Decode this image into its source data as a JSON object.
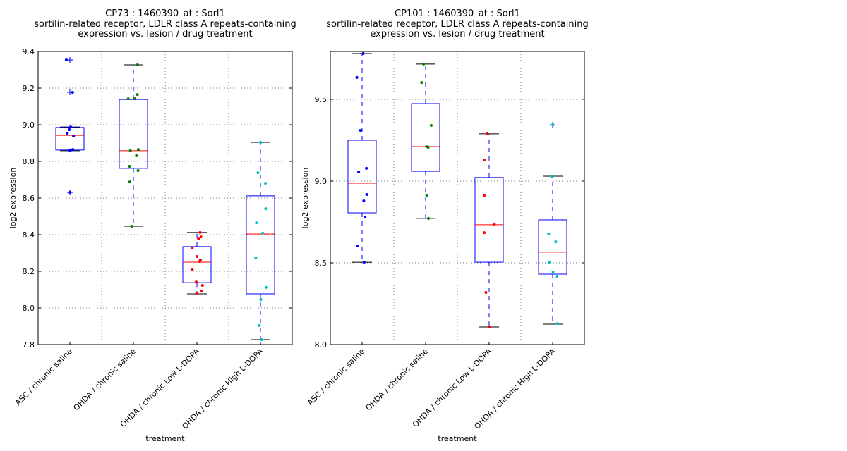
{
  "chart_data": [
    {
      "type": "box",
      "title_lines": [
        "CP73 : 1460390_at : Sorl1",
        "sortilin-related receptor, LDLR class A repeats-containing",
        "expression vs. lesion / drug treatment"
      ],
      "xlabel": "treatment",
      "ylabel": "log2 expression",
      "ylim": [
        7.8,
        9.4
      ],
      "yticks": [
        7.8,
        8.0,
        8.2,
        8.4,
        8.6,
        8.8,
        9.0,
        9.2,
        9.4
      ],
      "ytick_labels": [
        "7.8",
        "8.0",
        "8.2",
        "8.4",
        "8.6",
        "8.8",
        "9.0",
        "9.2",
        "9.4"
      ],
      "grid": true,
      "categories": [
        "ASC / chronic saline",
        "OHDA / chronic saline",
        "OHDA / chronic Low L-DOPA",
        "OHDA / chronic High L-DOPA"
      ],
      "groups": [
        {
          "name": "ASC / chronic saline",
          "color": "#0000ff",
          "box": {
            "q1": 8.862,
            "median": 8.942,
            "q3": 8.985,
            "whisker_low": 8.858,
            "whisker_high": 8.988
          },
          "outliers": [
            9.354,
            9.177,
            8.631
          ],
          "points": [
            9.354,
            9.177,
            8.988,
            8.973,
            8.954,
            8.938,
            8.865,
            8.862,
            8.858,
            8.631
          ]
        },
        {
          "name": "OHDA / chronic saline",
          "color": "#008000",
          "box": {
            "q1": 8.762,
            "median": 8.858,
            "q3": 9.138,
            "whisker_low": 8.446,
            "whisker_high": 9.327
          },
          "outliers": [],
          "points": [
            9.327,
            9.165,
            9.142,
            9.142,
            8.865,
            8.858,
            8.831,
            8.773,
            8.75,
            8.688,
            8.446
          ]
        },
        {
          "name": "OHDA / chronic Low L-DOPA",
          "color": "#ff0000",
          "box": {
            "q1": 8.138,
            "median": 8.25,
            "q3": 8.335,
            "whisker_low": 8.077,
            "whisker_high": 8.412
          },
          "outliers": [],
          "points": [
            8.412,
            8.388,
            8.377,
            8.327,
            8.281,
            8.262,
            8.254,
            8.208,
            8.142,
            8.123,
            8.092,
            8.081
          ]
        },
        {
          "name": "OHDA / chronic High L-DOPA",
          "color": "#00bfbf",
          "box": {
            "q1": 8.077,
            "median": 8.404,
            "q3": 8.612,
            "whisker_low": 7.827,
            "whisker_high": 8.904
          },
          "outliers": [],
          "points": [
            8.904,
            8.738,
            8.681,
            8.542,
            8.465,
            8.408,
            8.273,
            8.112,
            8.046,
            7.904,
            7.827
          ]
        }
      ]
    },
    {
      "type": "box",
      "title_lines": [
        "CP101 : 1460390_at : Sorl1",
        "sortilin-related receptor, LDLR class A repeats-containing",
        "expression vs. lesion / drug treatment"
      ],
      "xlabel": "treatment",
      "ylabel": "log2 expression",
      "ylim": [
        8.0,
        9.793
      ],
      "yticks": [
        8.0,
        8.5,
        9.0,
        9.5
      ],
      "ytick_labels": [
        "8.0",
        "8.5",
        "9.0",
        "9.5"
      ],
      "grid": true,
      "categories": [
        "ASC / chronic saline",
        "OHDA / chronic saline",
        "OHDA / chronic Low L-DOPA",
        "OHDA / chronic High L-DOPA"
      ],
      "groups": [
        {
          "name": "ASC / chronic saline",
          "color": "#0000ff",
          "box": {
            "q1": 8.806,
            "median": 8.987,
            "q3": 9.25,
            "whisker_low": 8.504,
            "whisker_high": 9.78
          },
          "outliers": [],
          "points": [
            9.78,
            9.634,
            9.31,
            9.078,
            9.056,
            8.918,
            8.879,
            8.78,
            8.603,
            8.504
          ]
        },
        {
          "name": "OHDA / chronic saline",
          "color": "#008000",
          "box": {
            "q1": 9.06,
            "median": 9.211,
            "q3": 9.474,
            "whisker_low": 8.772,
            "whisker_high": 9.716
          },
          "outliers": [],
          "points": [
            9.716,
            9.603,
            9.341,
            9.211,
            9.207,
            8.914,
            8.772
          ]
        },
        {
          "name": "OHDA / chronic Low L-DOPA",
          "color": "#ff0000",
          "box": {
            "q1": 8.504,
            "median": 8.733,
            "q3": 9.022,
            "whisker_low": 8.108,
            "whisker_high": 9.289
          },
          "outliers": [],
          "points": [
            9.289,
            9.129,
            8.914,
            8.737,
            8.685,
            8.319,
            8.108
          ]
        },
        {
          "name": "OHDA / chronic High L-DOPA",
          "color": "#00bfbf",
          "box": {
            "q1": 8.431,
            "median": 8.565,
            "q3": 8.763,
            "whisker_low": 8.125,
            "whisker_high": 9.03
          },
          "outliers": [
            9.345
          ],
          "points": [
            9.345,
            9.03,
            8.677,
            8.629,
            8.504,
            8.444,
            8.418,
            8.129
          ]
        }
      ]
    }
  ],
  "style": {
    "box_color": "#0000ff",
    "median_color": "#ff0000",
    "cap_color": "#000000",
    "grid_color": "#808080"
  }
}
